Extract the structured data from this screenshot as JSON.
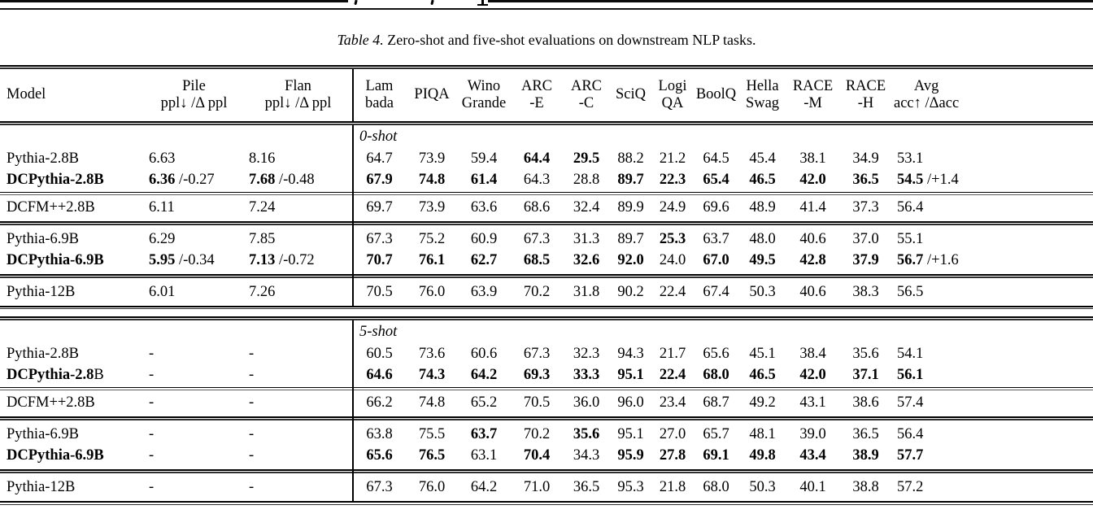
{
  "caption": {
    "label": "Table 4.",
    "text": "Zero-shot and five-shot evaluations on downstream NLP tasks."
  },
  "table": {
    "columns": [
      {
        "id": "model",
        "lines": [
          "Model"
        ]
      },
      {
        "id": "pile",
        "lines": [
          "Pile",
          "ppl↓ /Δ ppl"
        ]
      },
      {
        "id": "flan",
        "lines": [
          "Flan",
          "ppl↓ /Δ ppl"
        ]
      },
      {
        "id": "lambada",
        "lines": [
          "Lam",
          "bada"
        ]
      },
      {
        "id": "piqa",
        "lines": [
          "PIQA"
        ]
      },
      {
        "id": "winogrande",
        "lines": [
          "Wino",
          "Grande"
        ]
      },
      {
        "id": "arc-e",
        "lines": [
          "ARC",
          "-E"
        ]
      },
      {
        "id": "arc-c",
        "lines": [
          "ARC",
          "-C"
        ]
      },
      {
        "id": "sciq",
        "lines": [
          "SciQ"
        ]
      },
      {
        "id": "logiqa",
        "lines": [
          "Logi",
          "QA"
        ]
      },
      {
        "id": "boolq",
        "lines": [
          "BoolQ"
        ]
      },
      {
        "id": "hellaswag",
        "lines": [
          "Hella",
          "Swag"
        ]
      },
      {
        "id": "race-m",
        "lines": [
          "RACE",
          "-M"
        ]
      },
      {
        "id": "race-h",
        "lines": [
          "RACE",
          "-H"
        ]
      },
      {
        "id": "avg",
        "lines": [
          "Avg",
          "acc↑ /Δacc"
        ]
      }
    ],
    "sections": [
      {
        "label": "0-shot",
        "groups": [
          [
            {
              "m": [
                {
                  "t": "Pythia-2.8B"
                }
              ],
              "c": [
                "6.63",
                "8.16",
                "64.7",
                "73.9",
                "59.4",
                {
                  "v": "64.4",
                  "b": true
                },
                {
                  "v": "29.5",
                  "b": true
                },
                "88.2",
                "21.2",
                "64.5",
                "45.4",
                "38.1",
                "34.9",
                "53.1"
              ]
            },
            {
              "m": [
                {
                  "t": "DCPythia-2.8B",
                  "b": true
                }
              ],
              "c": [
                {
                  "v": "6.36",
                  "b": true,
                  "s": "/-0.27"
                },
                {
                  "v": "7.68",
                  "b": true,
                  "s": "/-0.48"
                },
                {
                  "v": "67.9",
                  "b": true
                },
                {
                  "v": "74.8",
                  "b": true
                },
                {
                  "v": "61.4",
                  "b": true
                },
                "64.3",
                "28.8",
                {
                  "v": "89.7",
                  "b": true
                },
                {
                  "v": "22.3",
                  "b": true
                },
                {
                  "v": "65.4",
                  "b": true
                },
                {
                  "v": "46.5",
                  "b": true
                },
                {
                  "v": "42.0",
                  "b": true
                },
                {
                  "v": "36.5",
                  "b": true
                },
                {
                  "v": "54.5",
                  "b": true,
                  "s": "/+1.4"
                }
              ]
            }
          ],
          [
            {
              "m": [
                {
                  "t": "DCFM++2.8B"
                }
              ],
              "c": [
                "6.11",
                "7.24",
                "69.7",
                "73.9",
                "63.6",
                "68.6",
                "32.4",
                "89.9",
                "24.9",
                "69.6",
                "48.9",
                "41.4",
                "37.3",
                "56.4"
              ]
            }
          ],
          [
            {
              "m": [
                {
                  "t": "Pythia-6.9B"
                }
              ],
              "c": [
                "6.29",
                "7.85",
                "67.3",
                "75.2",
                "60.9",
                "67.3",
                "31.3",
                "89.7",
                {
                  "v": "25.3",
                  "b": true
                },
                "63.7",
                "48.0",
                "40.6",
                "37.0",
                "55.1"
              ]
            },
            {
              "m": [
                {
                  "t": "DCPythia-6.9B",
                  "b": true
                }
              ],
              "c": [
                {
                  "v": "5.95",
                  "b": true,
                  "s": "/-0.34"
                },
                {
                  "v": "7.13",
                  "b": true,
                  "s": "/-0.72"
                },
                {
                  "v": "70.7",
                  "b": true
                },
                {
                  "v": "76.1",
                  "b": true
                },
                {
                  "v": "62.7",
                  "b": true
                },
                {
                  "v": "68.5",
                  "b": true
                },
                {
                  "v": "32.6",
                  "b": true
                },
                {
                  "v": "92.0",
                  "b": true
                },
                "24.0",
                {
                  "v": "67.0",
                  "b": true
                },
                {
                  "v": "49.5",
                  "b": true
                },
                {
                  "v": "42.8",
                  "b": true
                },
                {
                  "v": "37.9",
                  "b": true
                },
                {
                  "v": "56.7",
                  "b": true,
                  "s": "/+1.6"
                }
              ]
            }
          ],
          [
            {
              "m": [
                {
                  "t": "Pythia-12B"
                }
              ],
              "c": [
                "6.01",
                "7.26",
                "70.5",
                "76.0",
                "63.9",
                "70.2",
                "31.8",
                "90.2",
                "22.4",
                "67.4",
                "50.3",
                "40.6",
                "38.3",
                "56.5"
              ]
            }
          ]
        ]
      },
      {
        "label": "5-shot",
        "groups": [
          [
            {
              "m": [
                {
                  "t": "Pythia-2.8B"
                }
              ],
              "c": [
                "-",
                "-",
                "60.5",
                "73.6",
                "60.6",
                "67.3",
                "32.3",
                "94.3",
                "21.7",
                "65.6",
                "45.1",
                "38.4",
                "35.6",
                "54.1"
              ]
            },
            {
              "m": [
                {
                  "t": "DCPythia-2.8",
                  "b": true
                },
                {
                  "t": "B"
                }
              ],
              "c": [
                "-",
                "-",
                {
                  "v": "64.6",
                  "b": true
                },
                {
                  "v": "74.3",
                  "b": true
                },
                {
                  "v": "64.2",
                  "b": true
                },
                {
                  "v": "69.3",
                  "b": true
                },
                {
                  "v": "33.3",
                  "b": true
                },
                {
                  "v": "95.1",
                  "b": true
                },
                {
                  "v": "22.4",
                  "b": true
                },
                {
                  "v": "68.0",
                  "b": true
                },
                {
                  "v": "46.5",
                  "b": true
                },
                {
                  "v": "42.0",
                  "b": true
                },
                {
                  "v": "37.1",
                  "b": true
                },
                {
                  "v": "56.1",
                  "b": true
                }
              ]
            }
          ],
          [
            {
              "m": [
                {
                  "t": "DCFM++2.8B"
                }
              ],
              "c": [
                "-",
                "-",
                "66.2",
                "74.8",
                "65.2",
                "70.5",
                "36.0",
                "96.0",
                "23.4",
                "68.7",
                "49.2",
                "43.1",
                "38.6",
                "57.4"
              ]
            }
          ],
          [
            {
              "m": [
                {
                  "t": "Pythia-6.9B"
                }
              ],
              "c": [
                "-",
                "-",
                "63.8",
                "75.5",
                {
                  "v": "63.7",
                  "b": true
                },
                "70.2",
                {
                  "v": "35.6",
                  "b": true
                },
                "95.1",
                "27.0",
                "65.7",
                "48.1",
                "39.0",
                "36.5",
                "56.4"
              ]
            },
            {
              "m": [
                {
                  "t": "DCPythia-6.9B",
                  "b": true
                }
              ],
              "c": [
                "-",
                "-",
                {
                  "v": "65.6",
                  "b": true
                },
                {
                  "v": "76.5",
                  "b": true
                },
                "63.1",
                {
                  "v": "70.4",
                  "b": true
                },
                "34.3",
                {
                  "v": "95.9",
                  "b": true
                },
                {
                  "v": "27.8",
                  "b": true
                },
                {
                  "v": "69.1",
                  "b": true
                },
                {
                  "v": "49.8",
                  "b": true
                },
                {
                  "v": "43.4",
                  "b": true
                },
                {
                  "v": "38.9",
                  "b": true
                },
                {
                  "v": "57.7",
                  "b": true
                }
              ]
            }
          ],
          [
            {
              "m": [
                {
                  "t": "Pythia-12B"
                }
              ],
              "c": [
                "-",
                "-",
                "67.3",
                "76.0",
                "64.2",
                "71.0",
                "36.5",
                "95.3",
                "21.8",
                "68.0",
                "50.3",
                "40.1",
                "38.8",
                "57.2"
              ]
            }
          ]
        ]
      }
    ]
  }
}
